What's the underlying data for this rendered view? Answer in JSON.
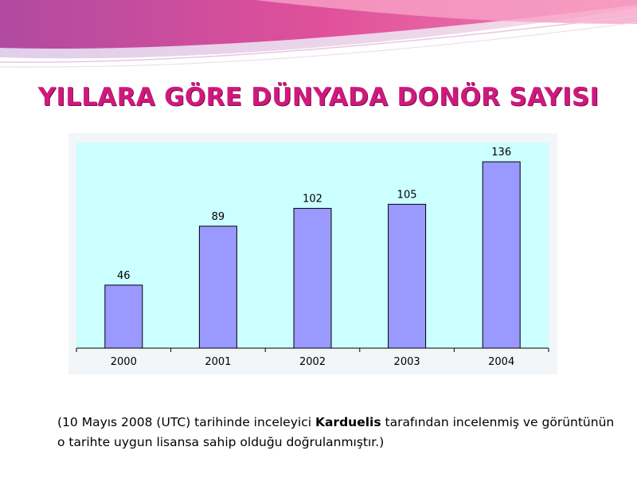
{
  "title": "YILLARA GÖRE DÜNYADA DONÖR SAYISI",
  "colors": {
    "title": "#d0187e",
    "bar_fill": "#9999ff",
    "plot_background": "#ccffff",
    "decor_magenta": "#d8307f",
    "decor_pink": "#f07fb0",
    "decor_lavender": "#c9a6d6"
  },
  "chart_data": {
    "type": "bar",
    "categories": [
      "2000",
      "2001",
      "2002",
      "2003",
      "2004"
    ],
    "values": [
      46,
      89,
      102,
      105,
      136
    ],
    "data_labels": [
      "46",
      "89",
      "102",
      "105",
      "136"
    ],
    "ylim": [
      0,
      150
    ],
    "grid": false,
    "legend": "none"
  },
  "caption": {
    "part1": "(10 Mayıs 2008 (UTC) tarihinde inceleyici ",
    "name": "Karduelis",
    "part2": " tarafından incelenmiş ve görüntünün o tarihte uygun  lisansa sahip olduğu doğrulanmıştır.)"
  }
}
